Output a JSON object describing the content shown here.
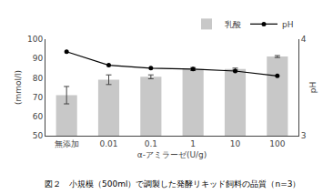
{
  "chart_data": {
    "type": "bar",
    "categories": [
      "無添加",
      "0.01",
      "0.1",
      "1",
      "10",
      "100"
    ],
    "series": [
      {
        "name": "乳酸",
        "type": "bar",
        "color": "#c8c8c8",
        "values": [
          71,
          79,
          80.5,
          84.5,
          84.5,
          91
        ],
        "errors": [
          4.5,
          2.5,
          1.0,
          0.8,
          0.5,
          0.5
        ]
      },
      {
        "name": "pH",
        "type": "line",
        "axis": "y2",
        "color": "#000000",
        "marker": "circle",
        "line_style": "solid",
        "values": [
          3.87,
          3.73,
          3.7,
          3.69,
          3.67,
          3.62
        ]
      }
    ],
    "xlabel": "α-アミラーゼ(U/g)",
    "ylabel": "(mmol/l)",
    "y2label": "pH",
    "ylim": [
      50,
      100
    ],
    "yticks": [
      50,
      60,
      70,
      80,
      90,
      100
    ],
    "y2lim": [
      3,
      4
    ],
    "y2ticks": [
      3,
      4
    ],
    "grid": false,
    "legend": "top",
    "annotations": [
      "図２　小規模（500ml）で調製した発酵リキッド飼料の品質（n=3）"
    ]
  }
}
